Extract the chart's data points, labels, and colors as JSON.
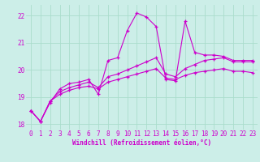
{
  "xlabel": "Windchill (Refroidissement éolien,°C)",
  "bg_color": "#cceee8",
  "line_color": "#cc00cc",
  "grid_color": "#aaddcc",
  "xlim": [
    -0.5,
    23.5
  ],
  "ylim": [
    17.8,
    22.4
  ],
  "xticks": [
    0,
    1,
    2,
    3,
    4,
    5,
    6,
    7,
    8,
    9,
    10,
    11,
    12,
    13,
    14,
    15,
    16,
    17,
    18,
    19,
    20,
    21,
    22,
    23
  ],
  "yticks": [
    18,
    19,
    20,
    21,
    22
  ],
  "series1_x": [
    0,
    1,
    2,
    3,
    4,
    5,
    6,
    7,
    8,
    9,
    10,
    11,
    12,
    13,
    14,
    15,
    16,
    17,
    18,
    19,
    20,
    21,
    22,
    23
  ],
  "series1_y": [
    18.5,
    18.1,
    18.8,
    19.3,
    19.5,
    19.55,
    19.65,
    19.1,
    20.35,
    20.45,
    21.45,
    22.1,
    21.95,
    21.6,
    19.65,
    19.6,
    21.8,
    20.65,
    20.55,
    20.55,
    20.5,
    20.35,
    20.35,
    20.35
  ],
  "series2_x": [
    0,
    1,
    2,
    3,
    4,
    5,
    6,
    7,
    8,
    9,
    10,
    11,
    12,
    13,
    14,
    15,
    16,
    17,
    18,
    19,
    20,
    21,
    22,
    23
  ],
  "series2_y": [
    18.5,
    18.1,
    18.85,
    19.2,
    19.35,
    19.45,
    19.55,
    19.35,
    19.75,
    19.85,
    20.0,
    20.15,
    20.3,
    20.45,
    19.85,
    19.75,
    20.05,
    20.2,
    20.35,
    20.4,
    20.45,
    20.3,
    20.3,
    20.3
  ],
  "series3_x": [
    0,
    1,
    2,
    3,
    4,
    5,
    6,
    7,
    8,
    9,
    10,
    11,
    12,
    13,
    14,
    15,
    16,
    17,
    18,
    19,
    20,
    21,
    22,
    23
  ],
  "series3_y": [
    18.5,
    18.1,
    18.85,
    19.1,
    19.25,
    19.35,
    19.4,
    19.3,
    19.55,
    19.65,
    19.75,
    19.85,
    19.95,
    20.05,
    19.7,
    19.65,
    19.8,
    19.9,
    19.95,
    20.0,
    20.05,
    19.95,
    19.95,
    19.9
  ],
  "marker": "+",
  "markersize": 3.5,
  "linewidth": 0.8,
  "tick_fontsize": 5.5,
  "xlabel_fontsize": 5.5
}
